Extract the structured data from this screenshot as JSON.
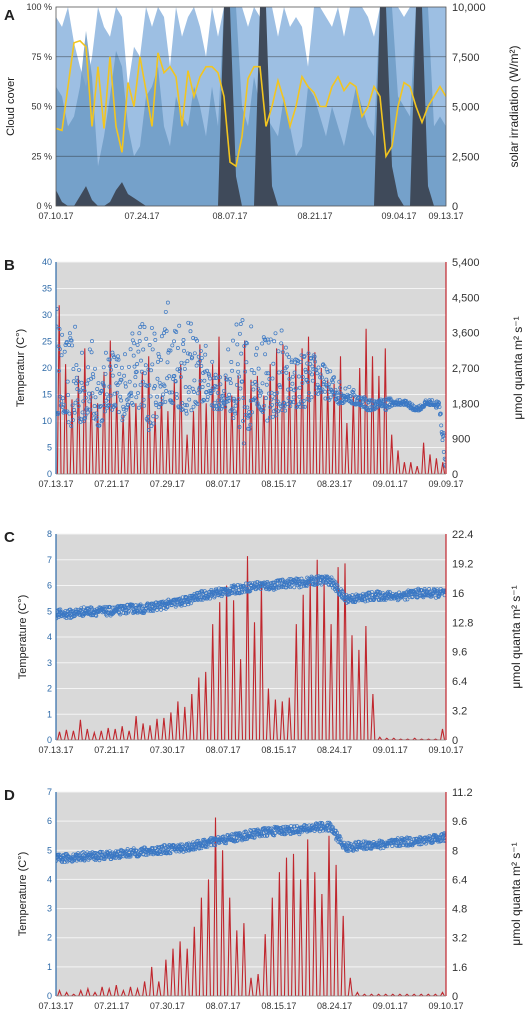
{
  "chart_data": [
    {
      "panel": "A",
      "type": "area",
      "x_tick_labels": [
        "07.10.17",
        "07.24.17",
        "08.07.17",
        "08.21.17",
        "09.04.17",
        "09.13.17"
      ],
      "y_left_label": "Cloud cover",
      "y_left_ticks": [
        "0 %",
        "25 %",
        "50 %",
        "75 %",
        "100 %"
      ],
      "y_left_range": [
        0,
        100
      ],
      "y_right_label": "solar irradiation (W/m²)",
      "y_right_ticks": [
        "0",
        "2,500",
        "5,000",
        "7,500",
        "10,000"
      ],
      "y_right_range": [
        0,
        10000
      ],
      "colors": {
        "cloud_upper": "#9dbfe3",
        "cloud_lower": "#6f9bc6",
        "dark": "#3f4a5a",
        "yellow": "#f2c520"
      },
      "series": [
        {
          "kind": "cloud-upper",
          "values": [
            95,
            90,
            100,
            82,
            70,
            60,
            75,
            100,
            90,
            85,
            100,
            95,
            60,
            80,
            75,
            100,
            90,
            100,
            95,
            70,
            100,
            85,
            95,
            100,
            90,
            75,
            100,
            85,
            100,
            100,
            100,
            100,
            90,
            100,
            95,
            100,
            100,
            85,
            100,
            90,
            95,
            90,
            70,
            100,
            100,
            95,
            90,
            100,
            85,
            100,
            100,
            100,
            95,
            85,
            100,
            100,
            100,
            100,
            95,
            100,
            100,
            100,
            100,
            100,
            100,
            100
          ]
        },
        {
          "kind": "cloud-lower",
          "values": [
            60,
            55,
            40,
            45,
            60,
            88,
            65,
            20,
            35,
            55,
            78,
            70,
            40,
            25,
            30,
            55,
            60,
            70,
            40,
            30,
            55,
            45,
            40,
            60,
            50,
            35,
            60,
            40,
            100,
            100,
            100,
            50,
            40,
            65,
            50,
            45,
            40,
            35,
            55,
            40,
            25,
            30,
            60,
            55,
            45,
            35,
            50,
            40,
            30,
            45,
            60,
            50,
            40,
            35,
            100,
            100,
            100,
            55,
            50,
            45,
            100,
            100,
            100,
            40,
            45,
            40
          ]
        },
        {
          "kind": "dark",
          "values": [
            8,
            2,
            0,
            0,
            5,
            10,
            3,
            0,
            0,
            2,
            8,
            12,
            6,
            4,
            2,
            0,
            0,
            0,
            0,
            0,
            0,
            0,
            0,
            0,
            0,
            0,
            0,
            0,
            100,
            100,
            15,
            0,
            0,
            0,
            100,
            100,
            10,
            0,
            0,
            0,
            0,
            0,
            0,
            0,
            0,
            0,
            0,
            0,
            0,
            0,
            0,
            0,
            0,
            0,
            100,
            100,
            20,
            5,
            0,
            0,
            100,
            100,
            10,
            0,
            0,
            0
          ]
        },
        {
          "kind": "yellow-irradiation",
          "values": [
            3900,
            3800,
            6000,
            8200,
            8300,
            8000,
            4000,
            7000,
            3900,
            7500,
            4000,
            2700,
            6200,
            5000,
            7500,
            5800,
            4000,
            7700,
            6700,
            7000,
            6500,
            4000,
            6800,
            5500,
            6500,
            7000,
            7000,
            6700,
            5500,
            2200,
            2000,
            3500,
            6400,
            7000,
            7000,
            4000,
            5000,
            6300,
            5300,
            4000,
            5000,
            6500,
            6000,
            5700,
            5000,
            5000,
            6000,
            6500,
            5800,
            6200,
            6000,
            4500,
            5000,
            6000,
            5500,
            2500,
            3000,
            5000,
            6200,
            6000,
            5000,
            4200,
            5000,
            5500,
            6000,
            5500
          ]
        }
      ]
    },
    {
      "panel": "B",
      "type": "scatter",
      "x_tick_labels": [
        "07.13.17",
        "07.21.17",
        "07.29.17",
        "08.07.17",
        "08.15.17",
        "08.23.17",
        "09.01.17",
        "09.09.17"
      ],
      "y_left_label": "Temperatur (C°)",
      "y_left_ticks": [
        "0",
        "5",
        "10",
        "15",
        "20",
        "25",
        "30",
        "35",
        "40"
      ],
      "y_left_range": [
        0,
        40
      ],
      "y_right_label": "μmol quanta m² s⁻¹",
      "y_right_ticks": [
        "0",
        "900",
        "1,800",
        "2,700",
        "3,600",
        "4,500",
        "5,400"
      ],
      "y_right_range": [
        0,
        5400
      ],
      "colors": {
        "temp": "#3b78c4",
        "light": "#c0262d"
      },
      "temp_envelope_low": [
        11,
        12,
        8,
        11,
        9,
        12,
        8,
        10,
        13,
        11,
        10,
        13,
        13,
        12,
        8,
        10,
        13,
        14,
        13,
        12,
        11,
        13,
        13,
        14,
        12,
        12,
        13,
        10,
        5,
        6,
        14,
        12,
        9,
        11,
        10,
        13,
        12,
        12,
        13,
        15,
        15,
        14,
        14,
        13,
        14,
        13,
        13,
        12,
        12,
        13,
        12,
        13,
        13,
        13,
        12,
        12,
        13,
        13,
        12,
        0
      ],
      "temp_envelope_high": [
        34,
        26,
        27,
        28,
        24,
        26,
        25,
        20,
        26,
        24,
        23,
        25,
        28,
        32,
        27,
        30,
        29,
        34,
        32,
        33,
        29,
        28,
        24,
        25,
        20,
        18,
        24,
        28,
        30,
        30,
        28,
        27,
        26,
        27,
        29,
        24,
        22,
        24,
        23,
        23,
        22,
        20,
        19,
        18,
        17,
        16,
        15,
        15,
        14,
        14,
        15,
        14,
        14,
        14,
        13,
        13,
        14,
        14,
        14,
        5
      ],
      "light_peaks": [
        4300,
        2800,
        1900,
        2500,
        3200,
        2100,
        1800,
        2600,
        3400,
        2100,
        1500,
        1800,
        1800,
        2600,
        3000,
        1600,
        2000,
        1600,
        2400,
        2800,
        1000,
        1600,
        3300,
        1800,
        2800,
        3500,
        2500,
        2000,
        2500,
        3400,
        2400,
        2500,
        2000,
        2800,
        3200,
        3300,
        2600,
        2800,
        3200,
        3500,
        3100,
        2700,
        2400,
        2300,
        3000,
        1300,
        2000,
        2700,
        3700,
        3000,
        2500,
        3200,
        1000,
        600,
        300,
        300,
        200,
        800,
        500,
        400,
        300
      ]
    },
    {
      "panel": "C",
      "type": "scatter",
      "x_tick_labels": [
        "07.13.17",
        "07.21.17",
        "07.30.17",
        "08.07.17",
        "08.15.17",
        "08.24.17",
        "09.01.17",
        "09.10.17"
      ],
      "y_left_label": "Temperature (C°)",
      "y_left_ticks": [
        "0",
        "1",
        "2",
        "3",
        "4",
        "5",
        "6",
        "7",
        "8"
      ],
      "y_left_range": [
        0,
        8
      ],
      "y_right_label": "μmol quanta m² s⁻¹",
      "y_right_ticks": [
        "0",
        "3.2",
        "6.4",
        "9.6",
        "12.8",
        "16",
        "19.2",
        "22.4"
      ],
      "y_right_range": [
        0,
        22.4
      ],
      "colors": {
        "temp": "#3b78c4",
        "light": "#c0262d"
      },
      "temp_trend": [
        4.9,
        4.9,
        5.0,
        5.0,
        5.0,
        5.1,
        5.1,
        5.2,
        5.3,
        5.4,
        5.6,
        5.7,
        5.8,
        5.9,
        6.0,
        6.0,
        6.1,
        6.1,
        6.2,
        6.2,
        5.5,
        5.5,
        5.6,
        5.6,
        5.6,
        5.7,
        5.7,
        5.7
      ],
      "light_peaks": [
        0.9,
        1.1,
        1.0,
        2.2,
        1.2,
        0.8,
        1.0,
        1.3,
        1.2,
        1.5,
        1.0,
        2.6,
        1.8,
        1.6,
        2.3,
        2.4,
        3.0,
        4.2,
        3.6,
        5.0,
        6.8,
        7.4,
        12.6,
        15.0,
        16.8,
        15.2,
        8.8,
        20.0,
        12.8,
        17.0,
        5.6,
        4.4,
        4.2,
        4.6,
        12.6,
        15.8,
        17.6,
        19.6,
        17.2,
        12.6,
        18.8,
        19.2,
        11.4,
        9.8,
        12.4,
        5.0,
        0.3,
        0.2,
        0.2,
        0.1,
        0.1,
        0.2,
        0.1,
        0.1,
        0.1,
        1.2
      ]
    },
    {
      "panel": "D",
      "type": "scatter",
      "x_tick_labels": [
        "07.13.17",
        "07.21.17",
        "07.30.17",
        "08.07.17",
        "08.15.17",
        "08.24.17",
        "09.01.17",
        "09.10.17"
      ],
      "y_left_label": "Temperature (C°)",
      "y_left_ticks": [
        "0",
        "1",
        "2",
        "3",
        "4",
        "5",
        "6",
        "7"
      ],
      "y_left_range": [
        0,
        7
      ],
      "y_right_label": "μmol quanta m² s⁻¹",
      "y_right_ticks": [
        "0",
        "1.6",
        "3.2",
        "4.8",
        "6.4",
        "8",
        "9.6",
        "11.2"
      ],
      "y_right_range": [
        0,
        11.2
      ],
      "colors": {
        "temp": "#3b78c4",
        "light": "#c0262d"
      },
      "temp_trend": [
        4.7,
        4.75,
        4.8,
        4.8,
        4.85,
        4.9,
        4.95,
        5.0,
        5.05,
        5.1,
        5.2,
        5.3,
        5.4,
        5.5,
        5.6,
        5.65,
        5.7,
        5.7,
        5.8,
        5.8,
        5.1,
        5.15,
        5.2,
        5.2,
        5.3,
        5.3,
        5.4,
        5.45
      ],
      "light_peaks": [
        0.3,
        0.2,
        0.1,
        0.3,
        0.4,
        0.2,
        0.5,
        0.4,
        0.6,
        0.3,
        0.5,
        0.4,
        0.8,
        1.6,
        0.8,
        2.0,
        2.6,
        3.0,
        2.6,
        3.8,
        5.4,
        6.4,
        9.8,
        8.0,
        5.4,
        3.6,
        4.0,
        1.0,
        1.2,
        3.4,
        5.4,
        6.8,
        7.6,
        7.8,
        6.4,
        8.6,
        6.8,
        5.6,
        8.8,
        7.2,
        4.4,
        1.0,
        0.2,
        0.1,
        0.1,
        0.1,
        0.1,
        0.1,
        0.1,
        0.1,
        0.1,
        0.1,
        0.1,
        0.1,
        0.2
      ]
    }
  ]
}
